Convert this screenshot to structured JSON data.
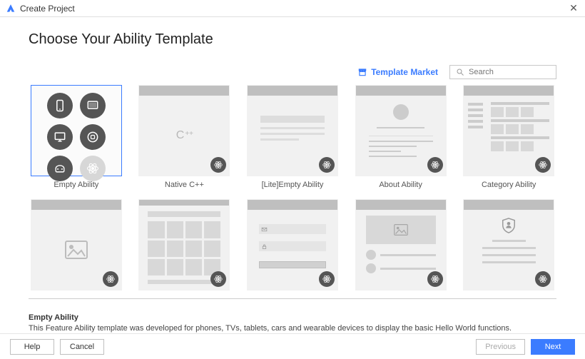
{
  "window": {
    "title": "Create Project",
    "close_icon": "✕"
  },
  "page": {
    "heading": "Choose Your Ability Template",
    "market_link": "Template Market",
    "search_placeholder": "Search"
  },
  "templates": [
    {
      "label": "Empty Ability",
      "selected": true,
      "preview": "icons"
    },
    {
      "label": "Native C++",
      "selected": false,
      "preview": "cpp",
      "preview_text": "C++"
    },
    {
      "label": "[Lite]Empty Ability",
      "selected": false,
      "preview": "lite"
    },
    {
      "label": "About Ability",
      "selected": false,
      "preview": "about"
    },
    {
      "label": "Category Ability",
      "selected": false,
      "preview": "category"
    },
    {
      "label": "",
      "selected": false,
      "preview": "image"
    },
    {
      "label": "",
      "selected": false,
      "preview": "grid"
    },
    {
      "label": "",
      "selected": false,
      "preview": "login"
    },
    {
      "label": "",
      "selected": false,
      "preview": "media"
    },
    {
      "label": "",
      "selected": false,
      "preview": "shield"
    }
  ],
  "description": {
    "title": "Empty Ability",
    "text": "This Feature Ability template was developed for phones, TVs, tablets, cars and wearable devices to display the basic Hello World functions."
  },
  "footer": {
    "help": "Help",
    "cancel": "Cancel",
    "previous": "Previous",
    "next": "Next"
  },
  "colors": {
    "accent": "#3b7cff",
    "card_bg": "#f1f1f1",
    "card_header": "#bfbfbf",
    "badge": "#555555"
  }
}
